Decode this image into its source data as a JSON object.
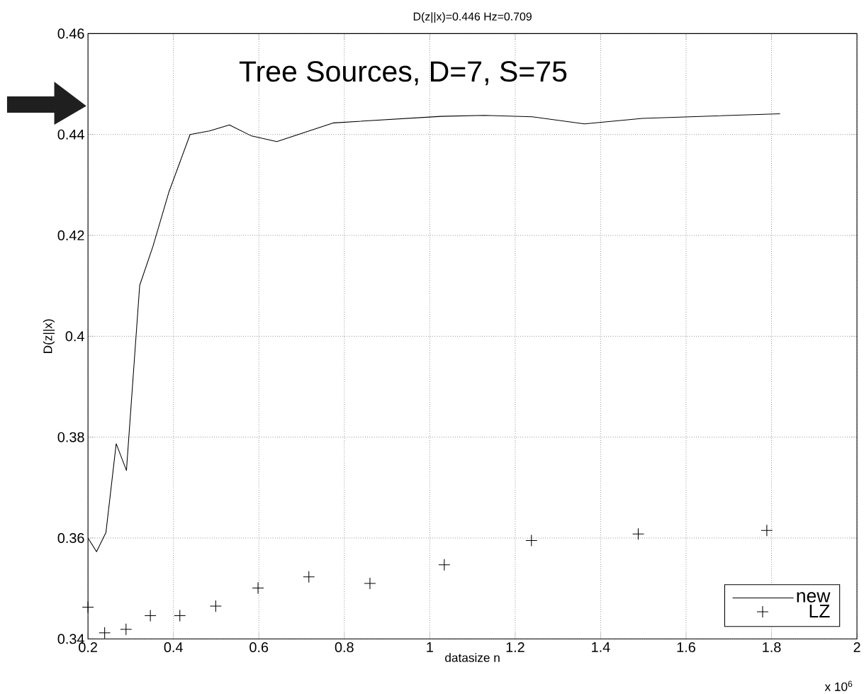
{
  "chart_data": {
    "type": "line",
    "title": "D(z||x)=0.446 Hz=0.709",
    "xlabel": "datasize n",
    "ylabel": "D(z||x)",
    "annotations": [
      "Tree Sources, D=7, S=75",
      "x 10$^{6}$"
    ],
    "xlim": [
      0.2,
      2
    ],
    "ylim": [
      0.34,
      0.46
    ],
    "xticks": [
      0.2,
      0.4,
      0.6,
      0.8,
      1,
      1.2,
      1.4,
      1.6,
      1.8,
      2
    ],
    "yticks": [
      0.34,
      0.36,
      0.38,
      0.4,
      0.42,
      0.44,
      0.46
    ],
    "grid": true,
    "legend": "bottom right",
    "series": [
      {
        "name": "new",
        "type": "line",
        "color": "#000000",
        "marker": "none",
        "line_style": "solid",
        "x": [
          0.2,
          0.22,
          0.242,
          0.266,
          0.29,
          0.321,
          0.352,
          0.389,
          0.439,
          0.484,
          0.531,
          0.583,
          0.642,
          0.775,
          1.027,
          1.128,
          1.24,
          1.362,
          1.498,
          1.82
        ],
        "values": [
          0.36,
          0.3573,
          0.3611,
          0.3787,
          0.3734,
          0.4101,
          0.4178,
          0.4285,
          0.44,
          0.4407,
          0.4419,
          0.4397,
          0.4386,
          0.4423,
          0.4436,
          0.4438,
          0.4435,
          0.4421,
          0.4432,
          0.4441
        ]
      },
      {
        "name": "LZ",
        "type": "scatter",
        "color": "#000000",
        "marker": "cross",
        "x": [
          0.2,
          0.239,
          0.289,
          0.346,
          0.415,
          0.499,
          0.598,
          0.717,
          0.86,
          1.034,
          1.238,
          1.488,
          1.789
        ],
        "values": [
          0.3463,
          0.3412,
          0.3419,
          0.3446,
          0.3446,
          0.3465,
          0.3501,
          0.3523,
          0.351,
          0.3547,
          0.3595,
          0.3608,
          0.3615
        ]
      }
    ]
  }
}
